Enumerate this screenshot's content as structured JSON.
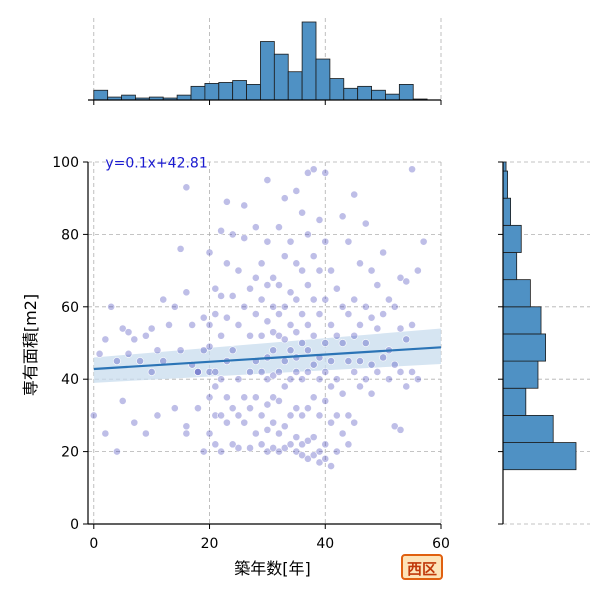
{
  "badge": "西区",
  "chart_data": {
    "type": "scatter",
    "xlabel": "築年数[年]",
    "ylabel": "専有面積[m2]",
    "xlim": [
      -1,
      60
    ],
    "ylim": [
      0,
      100
    ],
    "xticks": [
      0,
      20,
      40,
      60
    ],
    "yticks": [
      0,
      20,
      40,
      60,
      80,
      100
    ],
    "grid": true,
    "annotation": "y=0.1x+42.81",
    "regression": {
      "slope": 0.1,
      "intercept": 42.81,
      "ci_low": [
        39.0,
        44.2
      ],
      "ci_high": [
        46.0,
        54.0
      ]
    },
    "colors": {
      "point": "#3434b4",
      "hist": "#4f91c4",
      "line": "#2b74b6",
      "band": "#c8dcee",
      "annotation": "#1a1ad0",
      "badge_border": "#e06010",
      "badge_fill": "#fde3b8",
      "badge_text": "#c0390a"
    },
    "marginal_x_hist": {
      "bin_edges": [
        0,
        2.4,
        4.8,
        7.2,
        9.6,
        12.0,
        14.4,
        16.8,
        19.2,
        21.6,
        24.0,
        26.4,
        28.8,
        31.2,
        33.6,
        36.0,
        38.4,
        40.8,
        43.2,
        45.6,
        48.0,
        50.4,
        52.8,
        55.2,
        57.6
      ],
      "counts": [
        10,
        3,
        5,
        2,
        3,
        2,
        5,
        14,
        17,
        18,
        20,
        16,
        60,
        47,
        29,
        80,
        42,
        22,
        12,
        14,
        10,
        6,
        16,
        1
      ]
    },
    "marginal_y_hist": {
      "bin_edges": [
        15,
        22.5,
        30,
        37.5,
        45,
        52.5,
        60,
        67.5,
        75,
        82.5,
        90,
        97.5,
        100
      ],
      "counts": [
        48,
        33,
        15,
        23,
        28,
        25,
        18,
        9,
        12,
        5,
        3,
        2
      ]
    },
    "points": [
      [
        0,
        30
      ],
      [
        1,
        47
      ],
      [
        2,
        51
      ],
      [
        2,
        25
      ],
      [
        3,
        60
      ],
      [
        4,
        45
      ],
      [
        4,
        20
      ],
      [
        5,
        54
      ],
      [
        5,
        34
      ],
      [
        6,
        53
      ],
      [
        6,
        47
      ],
      [
        7,
        51
      ],
      [
        7,
        28
      ],
      [
        8,
        45
      ],
      [
        9,
        52
      ],
      [
        9,
        25
      ],
      [
        10,
        54
      ],
      [
        10,
        42
      ],
      [
        11,
        48
      ],
      [
        11,
        30
      ],
      [
        12,
        62
      ],
      [
        12,
        45
      ],
      [
        13,
        55
      ],
      [
        14,
        32
      ],
      [
        14,
        60
      ],
      [
        15,
        76
      ],
      [
        15,
        48
      ],
      [
        16,
        93
      ],
      [
        16,
        64
      ],
      [
        16,
        27
      ],
      [
        16,
        25
      ],
      [
        17,
        55
      ],
      [
        17,
        44
      ],
      [
        18,
        42
      ],
      [
        18,
        32
      ],
      [
        18,
        42
      ],
      [
        19,
        57
      ],
      [
        19,
        48
      ],
      [
        19,
        20
      ],
      [
        20,
        75
      ],
      [
        20,
        55
      ],
      [
        20,
        49
      ],
      [
        20,
        42
      ],
      [
        20,
        35
      ],
      [
        20,
        25
      ],
      [
        21,
        65
      ],
      [
        21,
        58
      ],
      [
        21,
        42
      ],
      [
        21,
        38
      ],
      [
        21,
        30
      ],
      [
        21,
        22
      ],
      [
        22,
        81
      ],
      [
        22,
        63
      ],
      [
        22,
        52
      ],
      [
        22,
        40
      ],
      [
        22,
        30
      ],
      [
        22,
        20
      ],
      [
        23,
        89
      ],
      [
        23,
        72
      ],
      [
        23,
        57
      ],
      [
        23,
        45
      ],
      [
        23,
        35
      ],
      [
        23,
        28
      ],
      [
        24,
        80
      ],
      [
        24,
        63
      ],
      [
        24,
        48
      ],
      [
        24,
        32
      ],
      [
        24,
        22
      ],
      [
        25,
        70
      ],
      [
        25,
        55
      ],
      [
        25,
        40
      ],
      [
        25,
        30
      ],
      [
        25,
        21
      ],
      [
        26,
        88
      ],
      [
        26,
        79
      ],
      [
        26,
        60
      ],
      [
        26,
        35
      ],
      [
        26,
        28
      ],
      [
        27,
        65
      ],
      [
        27,
        52
      ],
      [
        27,
        42
      ],
      [
        27,
        32
      ],
      [
        27,
        21
      ],
      [
        28,
        82
      ],
      [
        28,
        68
      ],
      [
        28,
        58
      ],
      [
        28,
        45
      ],
      [
        28,
        35
      ],
      [
        28,
        25
      ],
      [
        29,
        72
      ],
      [
        29,
        62
      ],
      [
        29,
        52
      ],
      [
        29,
        42
      ],
      [
        29,
        30
      ],
      [
        29,
        22
      ],
      [
        30,
        95
      ],
      [
        30,
        78
      ],
      [
        30,
        66
      ],
      [
        30,
        56
      ],
      [
        30,
        46
      ],
      [
        30,
        40
      ],
      [
        30,
        33
      ],
      [
        30,
        26
      ],
      [
        30,
        20
      ],
      [
        31,
        68
      ],
      [
        31,
        60
      ],
      [
        31,
        53
      ],
      [
        31,
        48
      ],
      [
        31,
        41
      ],
      [
        31,
        35
      ],
      [
        31,
        28
      ],
      [
        31,
        21
      ],
      [
        32,
        82
      ],
      [
        32,
        66
      ],
      [
        32,
        58
      ],
      [
        32,
        52
      ],
      [
        32,
        42
      ],
      [
        32,
        34
      ],
      [
        32,
        25
      ],
      [
        32,
        20
      ],
      [
        33,
        90
      ],
      [
        33,
        74
      ],
      [
        33,
        60
      ],
      [
        33,
        51
      ],
      [
        33,
        45
      ],
      [
        33,
        38
      ],
      [
        33,
        27
      ],
      [
        33,
        21
      ],
      [
        34,
        78
      ],
      [
        34,
        64
      ],
      [
        34,
        55
      ],
      [
        34,
        48
      ],
      [
        34,
        40
      ],
      [
        34,
        30
      ],
      [
        34,
        22
      ],
      [
        35,
        92
      ],
      [
        35,
        72
      ],
      [
        35,
        62
      ],
      [
        35,
        53
      ],
      [
        35,
        46
      ],
      [
        35,
        42
      ],
      [
        35,
        32
      ],
      [
        35,
        24
      ],
      [
        35,
        20
      ],
      [
        36,
        86
      ],
      [
        36,
        70
      ],
      [
        36,
        58
      ],
      [
        36,
        50
      ],
      [
        36,
        40
      ],
      [
        36,
        30
      ],
      [
        36,
        22
      ],
      [
        36,
        19
      ],
      [
        37,
        97
      ],
      [
        37,
        80
      ],
      [
        37,
        66
      ],
      [
        37,
        55
      ],
      [
        37,
        48
      ],
      [
        37,
        42
      ],
      [
        37,
        32
      ],
      [
        37,
        23
      ],
      [
        37,
        18
      ],
      [
        38,
        98
      ],
      [
        38,
        74
      ],
      [
        38,
        62
      ],
      [
        38,
        52
      ],
      [
        38,
        44
      ],
      [
        38,
        35
      ],
      [
        38,
        24
      ],
      [
        38,
        19
      ],
      [
        39,
        84
      ],
      [
        39,
        70
      ],
      [
        39,
        58
      ],
      [
        39,
        46
      ],
      [
        39,
        40
      ],
      [
        39,
        30
      ],
      [
        39,
        20
      ],
      [
        39,
        17
      ],
      [
        40,
        97
      ],
      [
        40,
        78
      ],
      [
        40,
        62
      ],
      [
        40,
        50
      ],
      [
        40,
        42
      ],
      [
        40,
        34
      ],
      [
        40,
        22
      ],
      [
        40,
        18
      ],
      [
        41,
        70
      ],
      [
        41,
        55
      ],
      [
        41,
        45
      ],
      [
        41,
        38
      ],
      [
        41,
        28
      ],
      [
        41,
        16
      ],
      [
        42,
        65
      ],
      [
        42,
        52
      ],
      [
        42,
        40
      ],
      [
        42,
        30
      ],
      [
        42,
        20
      ],
      [
        43,
        85
      ],
      [
        43,
        60
      ],
      [
        43,
        50
      ],
      [
        43,
        36
      ],
      [
        43,
        25
      ],
      [
        44,
        78
      ],
      [
        44,
        58
      ],
      [
        44,
        45
      ],
      [
        44,
        30
      ],
      [
        44,
        22
      ],
      [
        45,
        91
      ],
      [
        45,
        62
      ],
      [
        45,
        52
      ],
      [
        45,
        42
      ],
      [
        45,
        28
      ],
      [
        46,
        72
      ],
      [
        46,
        55
      ],
      [
        46,
        45
      ],
      [
        46,
        38
      ],
      [
        47,
        83
      ],
      [
        47,
        60
      ],
      [
        47,
        50
      ],
      [
        47,
        40
      ],
      [
        48,
        70
      ],
      [
        48,
        57
      ],
      [
        48,
        44
      ],
      [
        48,
        36
      ],
      [
        49,
        66
      ],
      [
        49,
        54
      ],
      [
        49,
        42
      ],
      [
        50,
        75
      ],
      [
        50,
        58
      ],
      [
        50,
        46
      ],
      [
        51,
        62
      ],
      [
        51,
        48
      ],
      [
        51,
        40
      ],
      [
        52,
        60
      ],
      [
        52,
        44
      ],
      [
        52,
        27
      ],
      [
        53,
        68
      ],
      [
        53,
        54
      ],
      [
        53,
        42
      ],
      [
        53,
        26
      ],
      [
        54,
        67
      ],
      [
        54,
        51
      ],
      [
        54,
        38
      ],
      [
        55,
        98
      ],
      [
        55,
        55
      ],
      [
        55,
        42
      ],
      [
        56,
        70
      ],
      [
        56,
        40
      ],
      [
        57,
        78
      ]
    ]
  }
}
